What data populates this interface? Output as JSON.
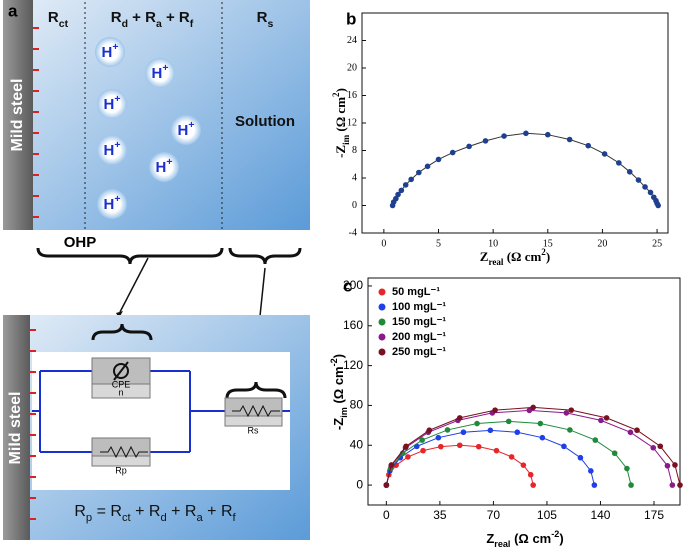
{
  "diagram": {
    "panel_label": "a",
    "zones": [
      [
        {
          "text": "R"
        },
        {
          "sub": "ct"
        }
      ],
      [
        {
          "text": "R"
        },
        {
          "sub": "d"
        },
        {
          "text": " + R"
        },
        {
          "sub": "a"
        },
        {
          "text": " + R"
        },
        {
          "sub": "f"
        }
      ],
      [
        {
          "text": "R"
        },
        {
          "sub": "s"
        }
      ]
    ],
    "metal": "Mild steel",
    "ion": [
      {
        "text": "H"
      },
      {
        "sup": "+"
      }
    ],
    "solution": "Solution",
    "ohp": "OHP",
    "circuit": {
      "cpe": "CPE",
      "cpe_param": "n",
      "rp": "Rp",
      "rs": "Rs"
    },
    "equation": [
      {
        "text": "R"
      },
      {
        "sub": "p"
      },
      {
        "text": " = R"
      },
      {
        "sub": "ct"
      },
      {
        "text": " + R"
      },
      {
        "sub": "d"
      },
      {
        "text": " + R"
      },
      {
        "sub": "a"
      },
      {
        "text": " + R"
      },
      {
        "sub": "f"
      }
    ]
  },
  "chart_data": [
    {
      "type": "scatter",
      "panel_label": "b",
      "xlabel": [
        {
          "text": "Z"
        },
        {
          "sub": "real"
        },
        {
          "text": " (Ω cm"
        },
        {
          "sup": "2"
        },
        {
          "text": ")"
        }
      ],
      "ylabel": [
        {
          "text": "-Z"
        },
        {
          "sub": "im"
        },
        {
          "text": " (Ω cm"
        },
        {
          "sup": "2"
        },
        {
          "text": ")"
        }
      ],
      "xlim": [
        -2,
        26
      ],
      "ylim": [
        -4,
        28
      ],
      "xticks": [
        0,
        5,
        10,
        15,
        20,
        25
      ],
      "yticks": [
        -4,
        0,
        4,
        8,
        12,
        16,
        20,
        24
      ],
      "color": "#1f3f8f",
      "x": [
        0.8,
        0.9,
        1.1,
        1.3,
        1.6,
        2,
        2.5,
        3.2,
        4,
        5,
        6.3,
        7.8,
        9.3,
        11,
        13,
        15,
        17,
        18.7,
        20.2,
        21.5,
        22.5,
        23.3,
        23.9,
        24.4,
        24.7,
        24.9,
        25,
        25.1
      ],
      "values": [
        0,
        0.5,
        1,
        1.6,
        2.2,
        3,
        3.8,
        4.8,
        5.7,
        6.7,
        7.7,
        8.6,
        9.4,
        10.1,
        10.5,
        10.3,
        9.6,
        8.7,
        7.5,
        6.2,
        4.9,
        3.7,
        2.7,
        1.9,
        1.2,
        0.7,
        0.3,
        0
      ]
    },
    {
      "type": "scatter",
      "panel_label": "c",
      "xlabel": [
        {
          "text": "Z"
        },
        {
          "sub": "real"
        },
        {
          "text": " (Ω cm"
        },
        {
          "sup": "-2"
        },
        {
          "text": ")"
        }
      ],
      "ylabel": [
        {
          "text": "-Z"
        },
        {
          "sub": "im"
        },
        {
          "text": " (Ω cm"
        },
        {
          "sup": "-2"
        },
        {
          "text": ")"
        }
      ],
      "xlim": [
        -12,
        192
      ],
      "ylim": [
        -20,
        208
      ],
      "xticks": [
        0,
        35,
        70,
        105,
        140,
        175
      ],
      "yticks": [
        0,
        40,
        80,
        120,
        160,
        200
      ],
      "series": [
        {
          "name": "50 mgL⁻¹",
          "color": "#e8262a",
          "x": [
            0,
            1.6,
            6.4,
            14.1,
            24,
            35.6,
            48,
            60.4,
            72,
            81.9,
            89.6,
            94.4,
            96
          ],
          "values": [
            0,
            10.4,
            20,
            28.3,
            34.6,
            38.6,
            40,
            38.6,
            34.6,
            28.3,
            20,
            10.4,
            0
          ]
        },
        {
          "name": "100 mgL⁻¹",
          "color": "#1f3fe8",
          "x": [
            0,
            2.3,
            9.1,
            19.9,
            34,
            50.4,
            68,
            85.6,
            102,
            116.1,
            126.9,
            133.7,
            136
          ],
          "values": [
            0,
            14.2,
            27.5,
            38.9,
            47.6,
            53.1,
            55,
            53.1,
            47.6,
            38.9,
            27.5,
            14.2,
            0
          ]
        },
        {
          "name": "150 mgL⁻¹",
          "color": "#1e8a3a",
          "x": [
            0,
            2.7,
            10.7,
            23.4,
            40,
            59.3,
            80,
            100.7,
            120,
            136.6,
            149.3,
            157.3,
            160
          ],
          "values": [
            0,
            16.6,
            32,
            45.2,
            55.4,
            61.8,
            64,
            61.8,
            55.4,
            45.2,
            32,
            16.6,
            0
          ]
        },
        {
          "name": "200 mgL⁻¹",
          "color": "#8a1a8a",
          "x": [
            0,
            3.2,
            12.5,
            27.4,
            46.8,
            69.3,
            93.5,
            117.7,
            140.3,
            159.6,
            174.5,
            183.8,
            187
          ],
          "values": [
            0,
            19.4,
            37.5,
            53,
            65,
            72.5,
            75,
            72.5,
            65,
            53,
            37.5,
            19.4,
            0
          ]
        },
        {
          "name": "250 mgL⁻¹",
          "color": "#7a1020",
          "x": [
            0,
            3.3,
            12.9,
            28.1,
            48,
            71.1,
            96,
            120.9,
            144,
            163.9,
            179.1,
            188.7,
            192
          ],
          "values": [
            0,
            20.2,
            39,
            55.1,
            67.5,
            75.3,
            78,
            75.3,
            67.5,
            55.1,
            39,
            20.2,
            0
          ]
        }
      ]
    }
  ]
}
